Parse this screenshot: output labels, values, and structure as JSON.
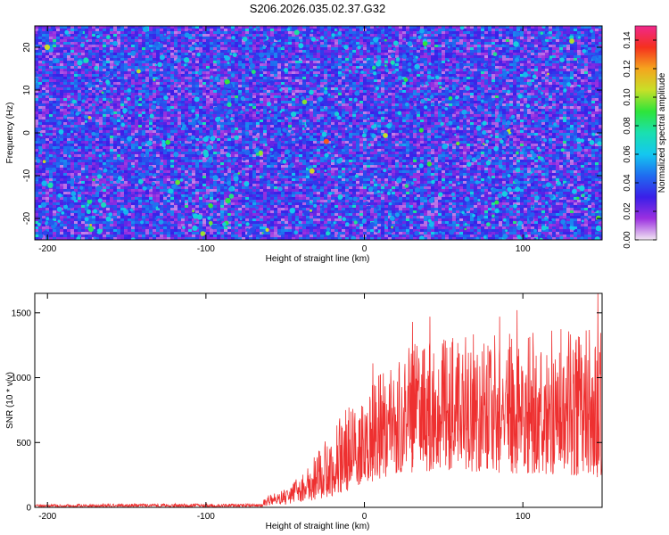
{
  "title": "S206.2026.035.02.37.G32",
  "chart_data": [
    {
      "type": "heatmap",
      "xlabel": "Height of straight line (km)",
      "ylabel": "Frequency (Hz)",
      "xlim": [
        -208,
        150
      ],
      "ylim": [
        -25,
        25
      ],
      "xticks": [
        -200,
        -100,
        0,
        100
      ],
      "xtick_labels": [
        "-200",
        "-100",
        "0",
        "100"
      ],
      "yticks": [
        -20,
        -10,
        0,
        10,
        20
      ],
      "ytick_labels": [
        "-20",
        "-10",
        "0",
        "10",
        "20"
      ],
      "colorbar": {
        "label": "Normalized spectral amplitude",
        "range": [
          0,
          0.15
        ],
        "ticks": [
          0,
          0.02,
          0.04,
          0.06,
          0.08,
          0.1,
          0.12,
          0.14
        ],
        "tick_labels": [
          "0.00",
          "0.02",
          "0.04",
          "0.06",
          "0.08",
          "0.10",
          "0.12",
          "0.14"
        ],
        "colors": [
          "#f2e6f2",
          "#9b30e0",
          "#3a1fe8",
          "#1f6cf0",
          "#14c8f0",
          "#1ae0b0",
          "#2ee43a",
          "#c8e028",
          "#f5a51e",
          "#f5301e",
          "#f0288c"
        ]
      },
      "typical_amplitude": [
        0.02,
        0.05
      ],
      "peak": {
        "x": -24,
        "y": -2,
        "value": 0.13
      }
    },
    {
      "type": "line",
      "xlabel": "Height of straight line (km)",
      "ylabel": "SNR (10 * v/v)",
      "xlim": [
        -208,
        150
      ],
      "ylim": [
        0,
        1650
      ],
      "xticks": [
        -200,
        -100,
        0,
        100
      ],
      "xtick_labels": [
        "-200",
        "-100",
        "0",
        "100"
      ],
      "yticks": [
        0,
        500,
        1000,
        1500
      ],
      "ytick_labels": [
        "0",
        "500",
        "1000",
        "1500"
      ],
      "series": [
        {
          "name": "SNR",
          "color": "#ee3030",
          "envelope": {
            "x": [
              -208,
              -65,
              -62,
              -50,
              -40,
              -30,
              -20,
              -10,
              0,
              10,
              20,
              30,
              40,
              50,
              60,
              80,
              100,
              120,
              140,
              150
            ],
            "low": [
              3,
              3,
              10,
              20,
              40,
              60,
              90,
              130,
              180,
              220,
              260,
              270,
              280,
              280,
              280,
              270,
              260,
              250,
              240,
              230
            ],
            "high": [
              25,
              30,
              90,
              140,
              250,
              420,
              600,
              800,
              920,
              1050,
              1150,
              1250,
              1300,
              1300,
              1320,
              1360,
              1360,
              1380,
              1400,
              1420
            ]
          },
          "peaks": [
            {
              "x": 5,
              "y": 1110
            },
            {
              "x": 30,
              "y": 1430
            },
            {
              "x": 41,
              "y": 1470
            },
            {
              "x": 85,
              "y": 1470
            },
            {
              "x": 96,
              "y": 1520
            },
            {
              "x": 147,
              "y": 1650
            }
          ]
        }
      ]
    }
  ]
}
